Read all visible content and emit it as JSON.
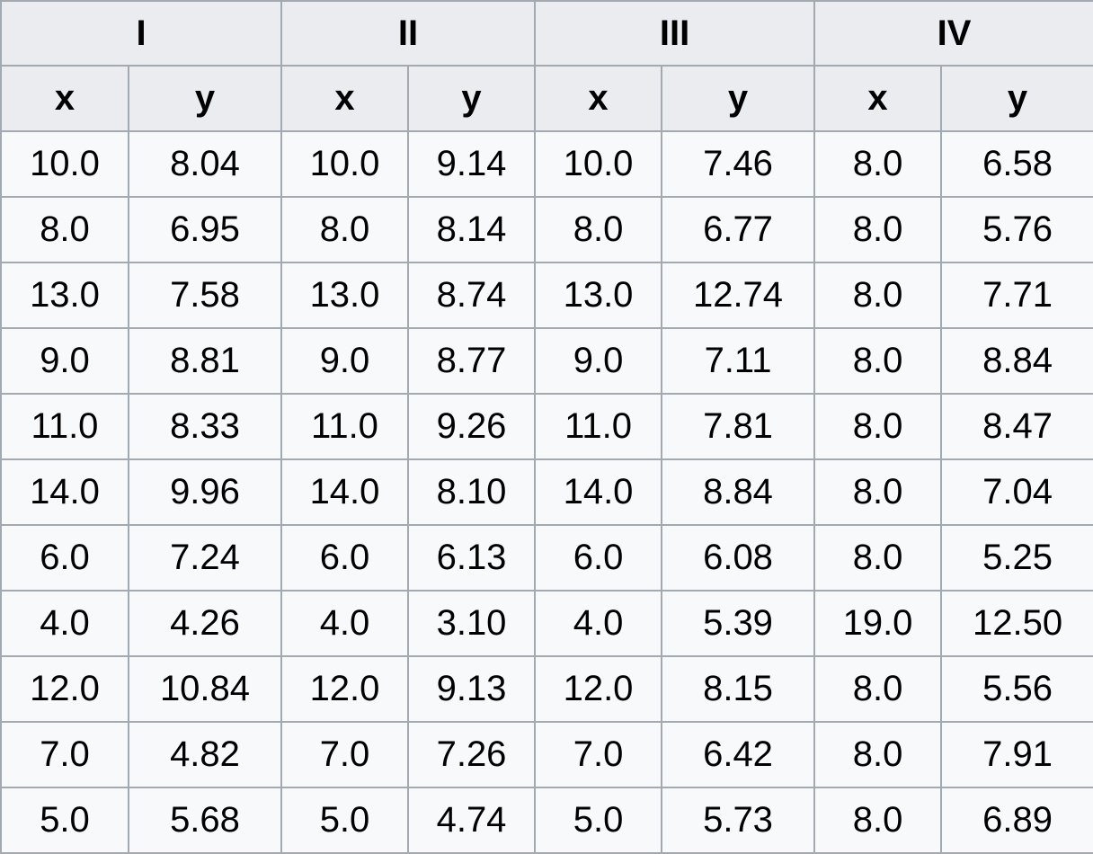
{
  "table": {
    "groups": [
      "I",
      "II",
      "III",
      "IV"
    ],
    "axis_labels": [
      "x",
      "y"
    ],
    "rows": [
      [
        "10.0",
        "8.04",
        "10.0",
        "9.14",
        "10.0",
        "7.46",
        "8.0",
        "6.58"
      ],
      [
        "8.0",
        "6.95",
        "8.0",
        "8.14",
        "8.0",
        "6.77",
        "8.0",
        "5.76"
      ],
      [
        "13.0",
        "7.58",
        "13.0",
        "8.74",
        "13.0",
        "12.74",
        "8.0",
        "7.71"
      ],
      [
        "9.0",
        "8.81",
        "9.0",
        "8.77",
        "9.0",
        "7.11",
        "8.0",
        "8.84"
      ],
      [
        "11.0",
        "8.33",
        "11.0",
        "9.26",
        "11.0",
        "7.81",
        "8.0",
        "8.47"
      ],
      [
        "14.0",
        "9.96",
        "14.0",
        "8.10",
        "14.0",
        "8.84",
        "8.0",
        "7.04"
      ],
      [
        "6.0",
        "7.24",
        "6.0",
        "6.13",
        "6.0",
        "6.08",
        "8.0",
        "5.25"
      ],
      [
        "4.0",
        "4.26",
        "4.0",
        "3.10",
        "4.0",
        "5.39",
        "19.0",
        "12.50"
      ],
      [
        "12.0",
        "10.84",
        "12.0",
        "9.13",
        "12.0",
        "8.15",
        "8.0",
        "5.56"
      ],
      [
        "7.0",
        "4.82",
        "7.0",
        "7.26",
        "7.0",
        "6.42",
        "8.0",
        "7.91"
      ],
      [
        "5.0",
        "5.68",
        "5.0",
        "4.74",
        "5.0",
        "5.73",
        "8.0",
        "6.89"
      ]
    ]
  },
  "colors": {
    "header_bg": "#eaecf0",
    "cell_bg": "#f8f9fa",
    "border": "#a2a9b1",
    "text": "#000000"
  }
}
